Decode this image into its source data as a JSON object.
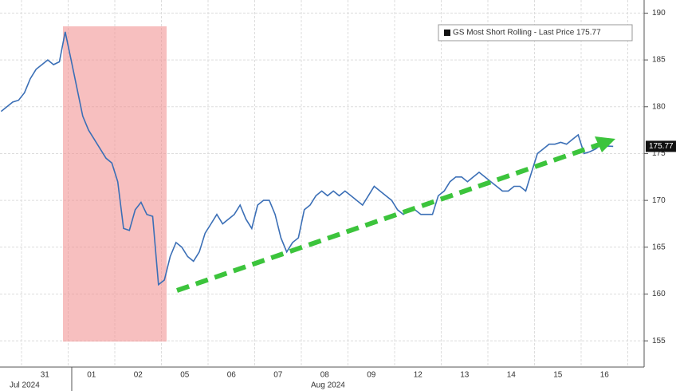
{
  "chart_data": {
    "type": "line",
    "series": [
      {
        "name": "GS Most Short Rolling - Last Price 175.77",
        "color": "#3b6fb6",
        "values": [
          179.5,
          180,
          180.5,
          180.7,
          181.5,
          183,
          184,
          184.5,
          185,
          184.5,
          184.8,
          188,
          185,
          182,
          179,
          177.5,
          176.5,
          175.5,
          174.5,
          174,
          172,
          167,
          166.8,
          169,
          169.8,
          168.5,
          168.3,
          161,
          161.5,
          164,
          165.5,
          165,
          164,
          163.5,
          164.5,
          166.5,
          167.5,
          168.5,
          167.5,
          168,
          168.5,
          169.5,
          168,
          167,
          169.5,
          170,
          170,
          168.5,
          166,
          164.5,
          165.5,
          166,
          169,
          169.5,
          170.5,
          171,
          170.5,
          171,
          170.5,
          171,
          170.5,
          170,
          169.5,
          170.5,
          171.5,
          171,
          170.5,
          170,
          169,
          168.5,
          169,
          169,
          168.5,
          168.5,
          168.5,
          170.5,
          171,
          172,
          172.5,
          172.5,
          172,
          172.5,
          173,
          172.5,
          172,
          171.5,
          171,
          171,
          171.5,
          171.5,
          171,
          173,
          175,
          175.5,
          176,
          176,
          176.2,
          176,
          176.5,
          177,
          175,
          175.2,
          175.5,
          176,
          175.8,
          175.77,
          null,
          null
        ]
      }
    ],
    "categories": [
      null,
      null,
      null,
      null,
      null,
      null,
      null,
      null,
      "31",
      null,
      null,
      null,
      null,
      null,
      null,
      null,
      "01",
      null,
      null,
      null,
      null,
      null,
      null,
      null,
      "02",
      null,
      null,
      null,
      null,
      null,
      null,
      null,
      "05",
      null,
      null,
      null,
      null,
      null,
      null,
      null,
      "06",
      null,
      null,
      null,
      null,
      null,
      null,
      null,
      "07",
      null,
      null,
      null,
      null,
      null,
      null,
      null,
      "08",
      null,
      null,
      null,
      null,
      null,
      null,
      null,
      "09",
      null,
      null,
      null,
      null,
      null,
      null,
      null,
      "12",
      null,
      null,
      null,
      null,
      null,
      null,
      null,
      "13",
      null,
      null,
      null,
      null,
      null,
      null,
      null,
      "14",
      null,
      null,
      null,
      null,
      null,
      null,
      null,
      "15",
      null,
      null,
      null,
      null,
      null,
      null,
      null,
      "16",
      null,
      null,
      null
    ],
    "month_labels": [
      "Jul 2024",
      "Aug 2024"
    ],
    "last_price": 175.77,
    "ylim": [
      152.2,
      191.4
    ],
    "yticks": [
      155,
      160,
      165,
      170,
      175,
      180,
      185,
      190
    ],
    "grid": true
  }
}
